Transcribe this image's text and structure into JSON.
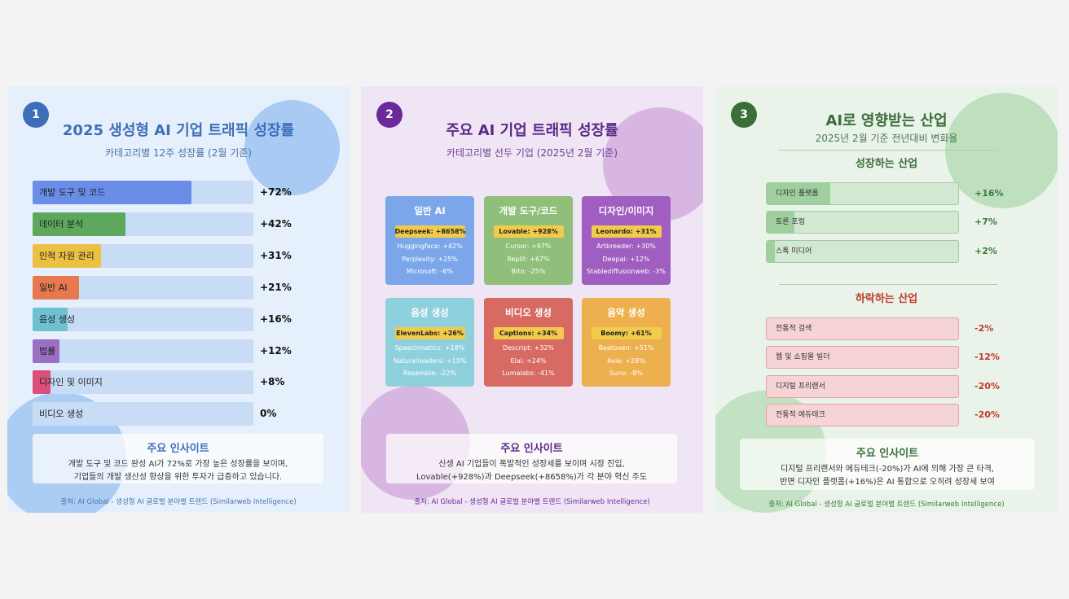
{
  "colors": {
    "panel1_title": "#3d6fb8",
    "panel2_title": "#5a2a86",
    "panel3_title": "#3c6e3c",
    "growth_value": "#3c7a3c",
    "decline_value": "#c0392b",
    "decline_title": "#c0392b"
  },
  "panel1": {
    "number": "1",
    "title": "2025 생성형 AI 기업 트래픽 성장률",
    "subtitle": "카테고리별 12주 성장률 (2월 기준)",
    "insight_title": "주요 인사이트",
    "insight_line1": "개발 도구 및 코드 완성 AI가 72%로 가장 높은 성장률을 보이며,",
    "insight_line2": "기업들의 개발 생산성 향상을 위한 투자가 급증하고 있습니다.",
    "source": "출처: AI Global - 생성형 AI 글로벌 분야별 트렌드 (Similarweb Intelligence)"
  },
  "panel2": {
    "number": "2",
    "title": "주요 AI 기업 트래픽 성장률",
    "subtitle": "카테고리별 선두 기업 (2025년 2월 기준)",
    "insight_title": "주요 인사이트",
    "insight_line1": "신생 AI 기업들이 폭발적인 성장세를 보이며 시장 진입,",
    "insight_line2": "Lovable(+928%)과 Deepseek(+8658%)가 각 분야 혁신 주도",
    "source": "출처: AI Global - 생성형 AI 글로벌 분야별 트렌드 (Similarweb Intelligence)"
  },
  "panel3": {
    "number": "3",
    "title": "AI로 영향받는 산업",
    "subtitle": "2025년 2월 기준 전년대비 변화율",
    "growth_title": "성장하는 산업",
    "decline_title": "하락하는 산업",
    "insight_title": "주요 인사이트",
    "insight_line1": "디지털 프리랜서와 에듀테크(-20%)가 AI에 의해 가장 큰 타격,",
    "insight_line2": "반면 디자인 플랫폼(+16%)은 AI 통합으로 오히려 성장세 보여",
    "source": "출처: AI Global - 생성형 AI 글로벌 분야별 트렌드 (Similarweb Intelligence)"
  },
  "chart_data": [
    {
      "type": "bar",
      "title": "2025 생성형 AI 기업 트래픽 성장률",
      "subtitle": "카테고리별 12주 성장률 (2월 기준)",
      "orientation": "horizontal",
      "xlim": [
        0,
        100
      ],
      "categories": [
        "개발 도구 및 코드",
        "데이터 분석",
        "인적 자원 관리",
        "일반 AI",
        "음성 생성",
        "법률",
        "디자인 및 이미지",
        "비디오 생성"
      ],
      "values": [
        72,
        42,
        31,
        21,
        16,
        12,
        8,
        0
      ],
      "value_labels": [
        "+72%",
        "+42%",
        "+31%",
        "+21%",
        "+16%",
        "+12%",
        "+8%",
        "0%"
      ],
      "bar_colors": [
        "#6a8ee8",
        "#5ea85e",
        "#ecc042",
        "#e8784f",
        "#6ec1d1",
        "#9b6fc4",
        "#d9507a",
        "#c9dcf6"
      ]
    },
    {
      "type": "table",
      "title": "주요 AI 기업 트래픽 성장률",
      "subtitle": "카테고리별 선두 기업 (2025년 2월 기준)",
      "cards": [
        {
          "category": "일반 AI",
          "color": "#7ba7ea",
          "leader": "Deepseek: +8658%",
          "items": [
            "Huggingface: +42%",
            "Perplexity: +25%",
            "Microsoft: -6%"
          ]
        },
        {
          "category": "개발 도구/코드",
          "color": "#8fbf7a",
          "leader": "Lovable: +928%",
          "items": [
            "Cursor: +97%",
            "Replit: +67%",
            "Bito: -25%"
          ]
        },
        {
          "category": "디자인/이미지",
          "color": "#a05ec0",
          "leader": "Leonardo: +31%",
          "items": [
            "Artbreeder: +30%",
            "Deepai: +12%",
            "Stablediffusionweb: -3%"
          ]
        },
        {
          "category": "음성 생성",
          "color": "#8fd0dd",
          "leader": "ElevenLabs: +26%",
          "items": [
            "Speechmatics: +18%",
            "Naturalreaders: +15%",
            "Resemble: -22%"
          ]
        },
        {
          "category": "비디오 생성",
          "color": "#d86a64",
          "leader": "Captions: +34%",
          "items": [
            "Descript: +32%",
            "Elai: +24%",
            "Lumalabs: -41%"
          ]
        },
        {
          "category": "음악 생성",
          "color": "#edb04e",
          "leader": "Boomy: +61%",
          "items": [
            "Beatoven: +51%",
            "Avia: +28%",
            "Suno: -8%"
          ]
        }
      ]
    },
    {
      "type": "bar",
      "title": "AI로 영향받는 산업",
      "subtitle": "2025년 2월 기준 전년대비 변화율",
      "orientation": "horizontal",
      "xlim": [
        0,
        100
      ],
      "growth": {
        "categories": [
          "디자인 플랫폼",
          "토론 포럼",
          "스톡 미디어"
        ],
        "values": [
          16,
          7,
          2
        ],
        "value_labels": [
          "+16%",
          "+7%",
          "+2%"
        ]
      },
      "decline": {
        "categories": [
          "전통적 검색",
          "웹 및 쇼핑몰 빌더",
          "디지털 프리랜서",
          "전통적 에듀테크"
        ],
        "values": [
          -2,
          -12,
          -20,
          -20
        ],
        "value_labels": [
          "-2%",
          "-12%",
          "-20%",
          "-20%"
        ]
      }
    }
  ]
}
